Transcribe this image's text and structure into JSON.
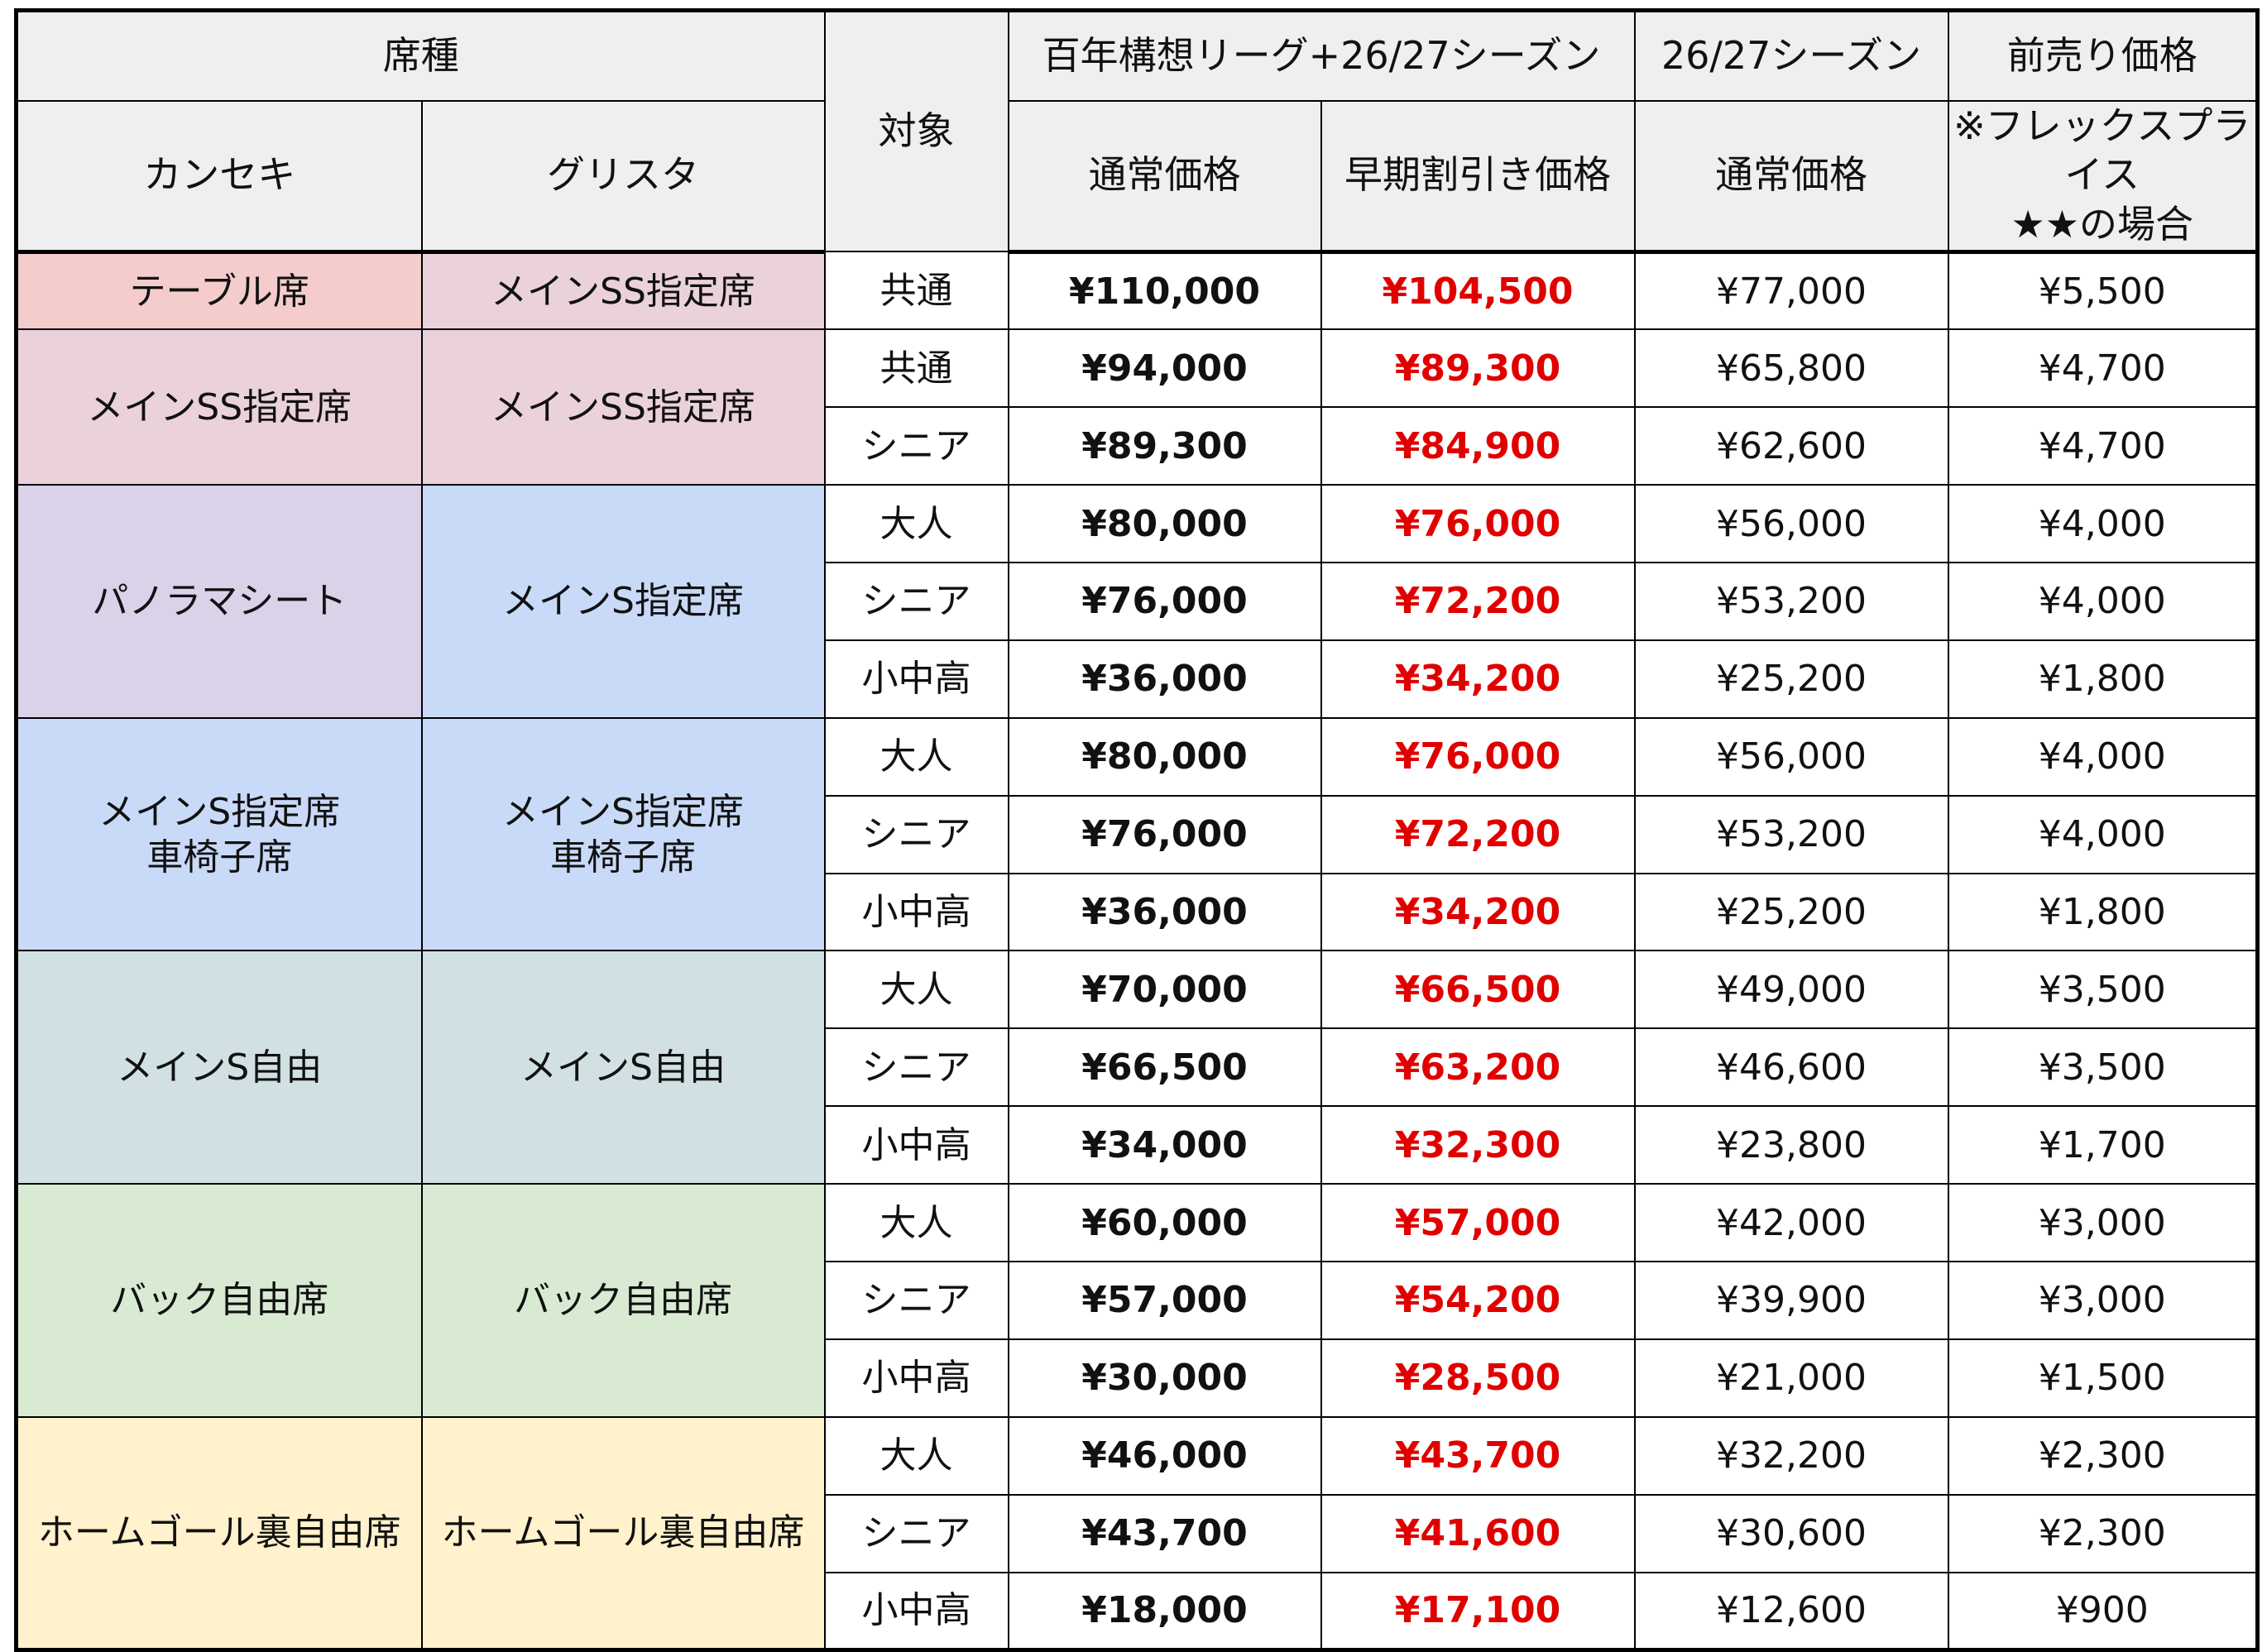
{
  "header": {
    "seat_type": "席種",
    "kanseki": "カンセキ",
    "grista": "グリスタ",
    "target": "対象",
    "group1": "百年構想リーグ+26/27シーズン",
    "normal": "通常価格",
    "early": "早期割引き価格",
    "group2": "26/27シーズン",
    "normal2": "通常価格",
    "presale": "前売り価格",
    "presale_note": [
      "※フレックスプライス",
      "★★の場合"
    ]
  },
  "groups": [
    {
      "kanseki": "テーブル席",
      "grista": "メインSS指定席",
      "kanseki_color": "#f4cccc",
      "grista_color": "#ead1dc",
      "rows": [
        {
          "target": "共通",
          "price": "¥110,000",
          "early": "¥104,500",
          "season": "¥77,000",
          "presale": "¥5,500"
        }
      ]
    },
    {
      "kanseki": "メインSS指定席",
      "grista": "メインSS指定席",
      "kanseki_color": "#ead1dc",
      "grista_color": "#ead1dc",
      "rows": [
        {
          "target": "共通",
          "price": "¥94,000",
          "early": "¥89,300",
          "season": "¥65,800",
          "presale": "¥4,700"
        },
        {
          "target": "シニア",
          "price": "¥89,300",
          "early": "¥84,900",
          "season": "¥62,600",
          "presale": "¥4,700"
        }
      ]
    },
    {
      "kanseki": "パノラマシート",
      "grista": "メインS指定席",
      "kanseki_color": "#d9d2e9",
      "grista_color": "#c9daf8",
      "rows": [
        {
          "target": "大人",
          "price": "¥80,000",
          "early": "¥76,000",
          "season": "¥56,000",
          "presale": "¥4,000"
        },
        {
          "target": "シニア",
          "price": "¥76,000",
          "early": "¥72,200",
          "season": "¥53,200",
          "presale": "¥4,000"
        },
        {
          "target": "小中高",
          "price": "¥36,000",
          "early": "¥34,200",
          "season": "¥25,200",
          "presale": "¥1,800"
        }
      ]
    },
    {
      "kanseki": "メインS指定席\n車椅子席",
      "grista": "メインS指定席\n車椅子席",
      "kanseki_color": "#c9daf8",
      "grista_color": "#c9daf8",
      "rows": [
        {
          "target": "大人",
          "price": "¥80,000",
          "early": "¥76,000",
          "season": "¥56,000",
          "presale": "¥4,000"
        },
        {
          "target": "シニア",
          "price": "¥76,000",
          "early": "¥72,200",
          "season": "¥53,200",
          "presale": "¥4,000"
        },
        {
          "target": "小中高",
          "price": "¥36,000",
          "early": "¥34,200",
          "season": "¥25,200",
          "presale": "¥1,800"
        }
      ]
    },
    {
      "kanseki": "メインS自由",
      "grista": "メインS自由",
      "kanseki_color": "#d0e0e3",
      "grista_color": "#d0e0e3",
      "rows": [
        {
          "target": "大人",
          "price": "¥70,000",
          "early": "¥66,500",
          "season": "¥49,000",
          "presale": "¥3,500"
        },
        {
          "target": "シニア",
          "price": "¥66,500",
          "early": "¥63,200",
          "season": "¥46,600",
          "presale": "¥3,500"
        },
        {
          "target": "小中高",
          "price": "¥34,000",
          "early": "¥32,300",
          "season": "¥23,800",
          "presale": "¥1,700"
        }
      ]
    },
    {
      "kanseki": "バック自由席",
      "grista": "バック自由席",
      "kanseki_color": "#d9ead3",
      "grista_color": "#d9ead3",
      "rows": [
        {
          "target": "大人",
          "price": "¥60,000",
          "early": "¥57,000",
          "season": "¥42,000",
          "presale": "¥3,000"
        },
        {
          "target": "シニア",
          "price": "¥57,000",
          "early": "¥54,200",
          "season": "¥39,900",
          "presale": "¥3,000"
        },
        {
          "target": "小中高",
          "price": "¥30,000",
          "early": "¥28,500",
          "season": "¥21,000",
          "presale": "¥1,500"
        }
      ]
    },
    {
      "kanseki": "ホームゴール裏自由席",
      "grista": "ホームゴール裏自由席",
      "kanseki_color": "#fff2cc",
      "grista_color": "#fff2cc",
      "rows": [
        {
          "target": "大人",
          "price": "¥46,000",
          "early": "¥43,700",
          "season": "¥32,200",
          "presale": "¥2,300"
        },
        {
          "target": "シニア",
          "price": "¥43,700",
          "early": "¥41,600",
          "season": "¥30,600",
          "presale": "¥2,300"
        },
        {
          "target": "小中高",
          "price": "¥18,000",
          "early": "¥17,100",
          "season": "¥12,600",
          "presale": "¥900"
        }
      ]
    }
  ]
}
